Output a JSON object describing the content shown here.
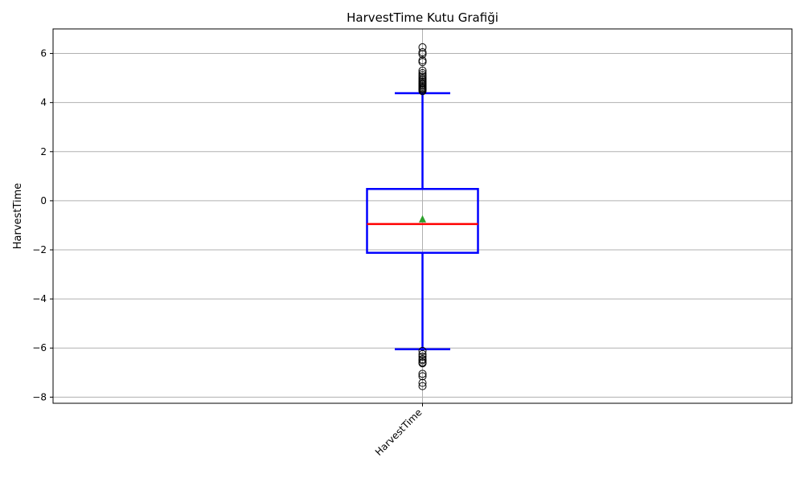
{
  "chart_data": {
    "type": "box",
    "title": "HarvestTime Kutu Grafiği",
    "xlabel": "",
    "ylabel": "HarvestTime",
    "categories": [
      "HarvestTime"
    ],
    "ylim": [
      -8.25,
      7.0
    ],
    "yticks": [
      -8,
      -6,
      -4,
      -2,
      0,
      2,
      4,
      6
    ],
    "grid": true,
    "boxes": [
      {
        "category": "HarvestTime",
        "q1": -2.12,
        "median": -0.95,
        "q3": 0.48,
        "mean": -0.75,
        "whisker_low": -6.05,
        "whisker_high": 4.38,
        "outliers_high": [
          4.47,
          4.52,
          4.56,
          4.6,
          4.65,
          4.7,
          4.75,
          4.8,
          4.86,
          4.92,
          4.98,
          5.05,
          5.12,
          5.2,
          5.3,
          5.65,
          5.72,
          5.97,
          6.05,
          6.25
        ],
        "outliers_low": [
          -6.12,
          -6.25,
          -6.35,
          -6.45,
          -6.5,
          -6.58,
          -6.62,
          -7.05,
          -7.15,
          -7.42,
          -7.55
        ]
      }
    ],
    "colors": {
      "box": "#0000ff",
      "median": "#ff0000",
      "mean_marker": "#2ca02c",
      "outlier": "#000000",
      "grid": "#b0b0b0"
    }
  }
}
